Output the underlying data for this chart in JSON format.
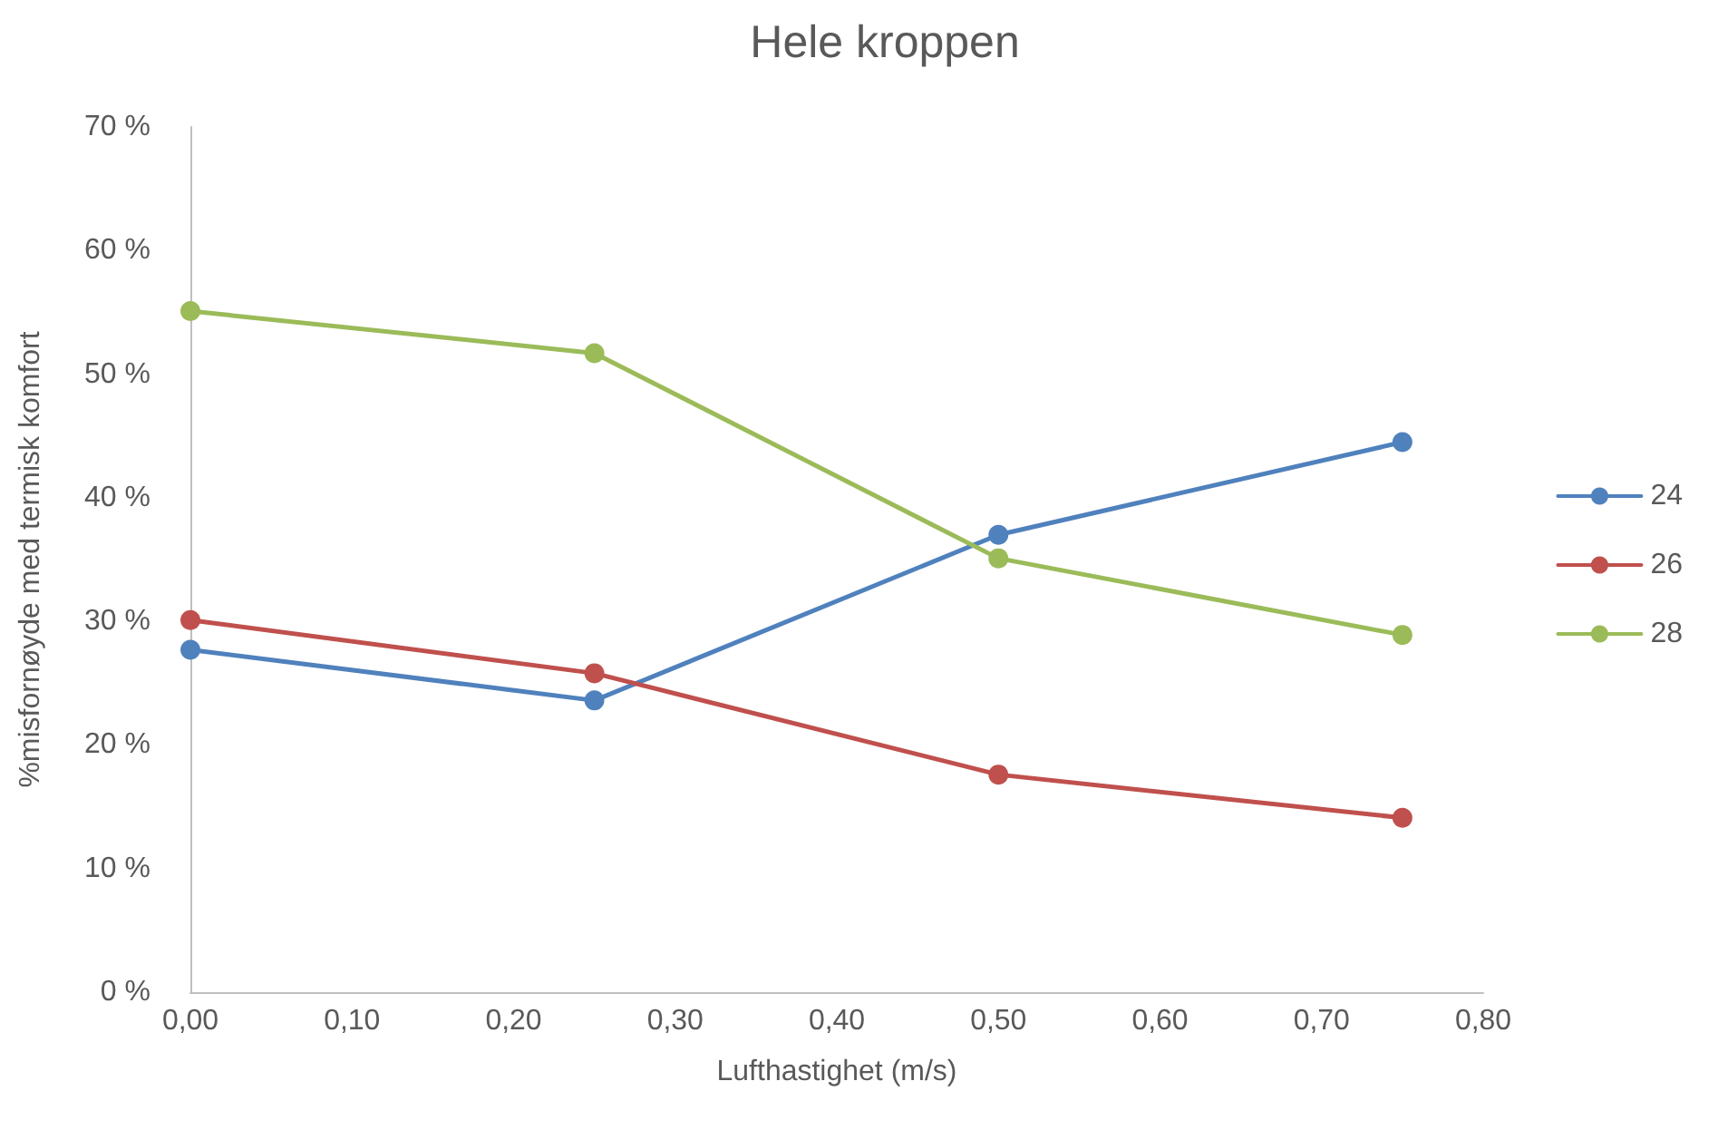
{
  "chart_data": {
    "type": "line",
    "title": "Hele kroppen",
    "xlabel": "Lufthastighet (m/s)",
    "ylabel": "%misfornøyde med termisk komfort",
    "x": [
      0,
      0.25,
      0.5,
      0.75
    ],
    "series": [
      {
        "name": "24",
        "color": "#4f81bd",
        "values": [
          27.7,
          23.6,
          37.0,
          44.5
        ]
      },
      {
        "name": "26",
        "color": "#c0504d",
        "values": [
          30.1,
          25.8,
          17.6,
          14.1
        ]
      },
      {
        "name": "28",
        "color": "#9bbb59",
        "values": [
          55.1,
          51.7,
          35.1,
          28.9
        ]
      }
    ],
    "xlim": [
      0,
      0.8
    ],
    "xticks": [
      {
        "value": 0,
        "label": "0,00"
      },
      {
        "value": 0.1,
        "label": "0,10"
      },
      {
        "value": 0.2,
        "label": "0,20"
      },
      {
        "value": 0.3,
        "label": "0,30"
      },
      {
        "value": 0.4,
        "label": "0,40"
      },
      {
        "value": 0.5,
        "label": "0,50"
      },
      {
        "value": 0.6,
        "label": "0,60"
      },
      {
        "value": 0.7,
        "label": "0,70"
      },
      {
        "value": 0.8,
        "label": "0,80"
      }
    ],
    "ylim": [
      0,
      70
    ],
    "yticks": [
      {
        "value": 0,
        "label": "0 %"
      },
      {
        "value": 10,
        "label": "10 %"
      },
      {
        "value": 20,
        "label": "20 %"
      },
      {
        "value": 30,
        "label": "30 %"
      },
      {
        "value": 40,
        "label": "40 %"
      },
      {
        "value": 50,
        "label": "50 %"
      },
      {
        "value": 60,
        "label": "60 %"
      },
      {
        "value": 70,
        "label": "70 %"
      }
    ],
    "grid": false,
    "legend": "right",
    "marker": "circle",
    "line_style": "solid"
  }
}
